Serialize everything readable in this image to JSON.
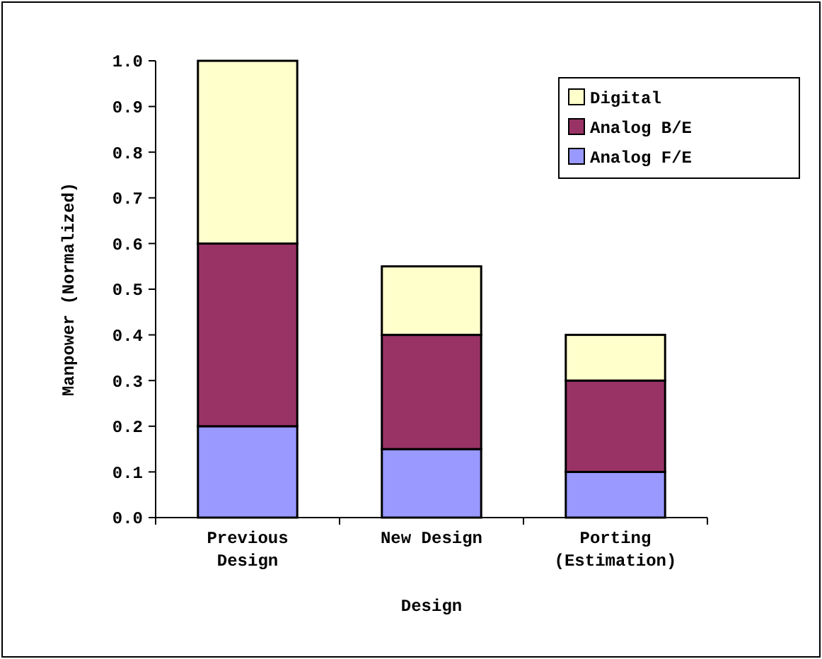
{
  "chart_data": {
    "type": "bar",
    "stacked": true,
    "xlabel": "Design",
    "ylabel": "Manpower (Normalized)",
    "categories": [
      "Previous\nDesign",
      "New Design",
      "Porting\n(Estimation)"
    ],
    "series": [
      {
        "name": "Analog F/E",
        "color": "#9999ff",
        "values": [
          0.2,
          0.15,
          0.1
        ]
      },
      {
        "name": "Analog B/E",
        "color": "#993366",
        "values": [
          0.4,
          0.25,
          0.2
        ]
      },
      {
        "name": "Digital",
        "color": "#ffffcc",
        "values": [
          0.4,
          0.15,
          0.1
        ]
      }
    ],
    "ylim": [
      0,
      1
    ],
    "yticks": [
      {
        "value": 0,
        "label": "0.0"
      },
      {
        "value": 0.1,
        "label": "0.1"
      },
      {
        "value": 0.2,
        "label": "0.2"
      },
      {
        "value": 0.3,
        "label": "0.3"
      },
      {
        "value": 0.4,
        "label": "0.4"
      },
      {
        "value": 0.5,
        "label": "0.5"
      },
      {
        "value": 0.6,
        "label": "0.6"
      },
      {
        "value": 0.7,
        "label": "0.7"
      },
      {
        "value": 0.8,
        "label": "0.8"
      },
      {
        "value": 0.9,
        "label": "0.9"
      },
      {
        "value": 1,
        "label": "1.0"
      }
    ],
    "grid": false,
    "legend": "top right"
  }
}
